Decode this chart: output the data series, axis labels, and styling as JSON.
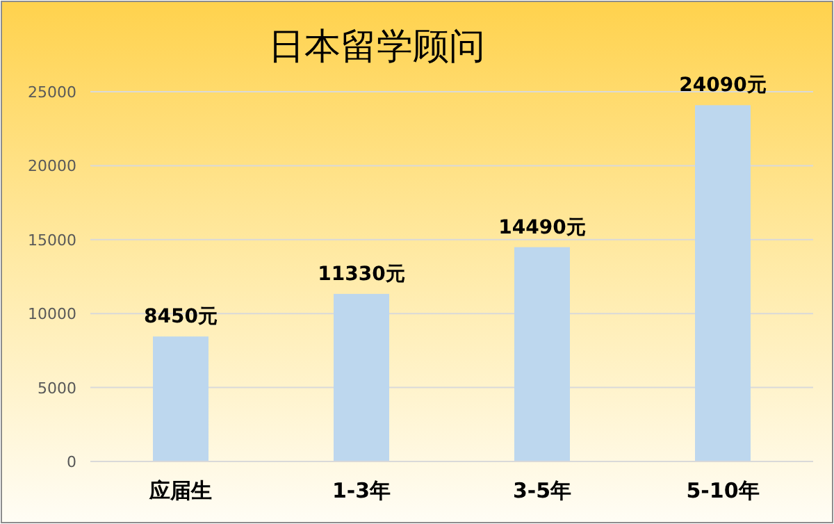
{
  "chart_data": {
    "type": "bar",
    "title": "日本留学顾问",
    "categories": [
      "应届生",
      "1-3年",
      "3-5年",
      "5-10年"
    ],
    "values": [
      8450,
      11330,
      14490,
      24090
    ],
    "value_labels": [
      "8450元",
      "11330元",
      "14490元",
      "24090元"
    ],
    "color": "#bdd7ee",
    "ylim": [
      0,
      25000
    ],
    "yticks": [
      0,
      5000,
      10000,
      15000,
      20000,
      25000
    ],
    "grid": "y"
  }
}
